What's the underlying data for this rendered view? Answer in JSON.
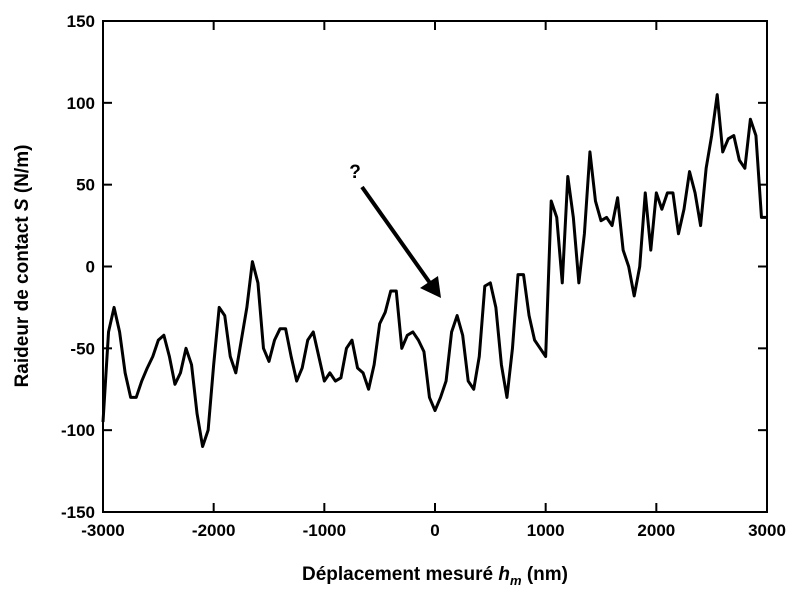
{
  "chart_data": {
    "type": "line",
    "xlabel": {
      "parts": [
        "Déplacement mesuré ",
        "h",
        "m",
        " (nm)"
      ]
    },
    "ylabel": {
      "parts": [
        "Raideur de contact ",
        "S",
        " (N/m)"
      ]
    },
    "annotation": "?",
    "xlim": [
      -3000,
      3000
    ],
    "xticks": [
      -3000,
      -2000,
      -1000,
      0,
      1000,
      2000,
      3000
    ],
    "ylim": [
      -150,
      150
    ],
    "yticks": [
      -150,
      -100,
      -50,
      0,
      50,
      100,
      150
    ],
    "series": [
      {
        "color": "#000000",
        "x": [
          -3000,
          -2950,
          -2900,
          -2850,
          -2800,
          -2750,
          -2700,
          -2650,
          -2600,
          -2550,
          -2500,
          -2450,
          -2400,
          -2350,
          -2300,
          -2250,
          -2200,
          -2150,
          -2100,
          -2050,
          -2000,
          -1950,
          -1900,
          -1850,
          -1800,
          -1750,
          -1700,
          -1650,
          -1600,
          -1550,
          -1500,
          -1450,
          -1400,
          -1350,
          -1300,
          -1250,
          -1200,
          -1150,
          -1100,
          -1050,
          -1000,
          -950,
          -900,
          -850,
          -800,
          -750,
          -700,
          -650,
          -600,
          -550,
          -500,
          -450,
          -400,
          -350,
          -300,
          -250,
          -200,
          -150,
          -100,
          -50,
          0,
          50,
          100,
          150,
          200,
          250,
          300,
          350,
          400,
          450,
          500,
          550,
          600,
          650,
          700,
          750,
          800,
          850,
          900,
          950,
          1000,
          1050,
          1100,
          1150,
          1200,
          1250,
          1300,
          1350,
          1400,
          1450,
          1500,
          1550,
          1600,
          1650,
          1700,
          1750,
          1800,
          1850,
          1900,
          1950,
          2000,
          2050,
          2100,
          2150,
          2200,
          2250,
          2300,
          2350,
          2400,
          2450,
          2500,
          2550,
          2600,
          2650,
          2700,
          2750,
          2800,
          2850,
          2900,
          2950,
          3000
        ],
        "values": [
          -95,
          -40,
          -25,
          -40,
          -65,
          -80,
          -80,
          -70,
          -62,
          -55,
          -45,
          -42,
          -55,
          -72,
          -65,
          -50,
          -60,
          -90,
          -110,
          -100,
          -60,
          -25,
          -30,
          -55,
          -65,
          -45,
          -25,
          3,
          -10,
          -50,
          -58,
          -45,
          -38,
          -38,
          -55,
          -70,
          -62,
          -45,
          -40,
          -55,
          -70,
          -65,
          -70,
          -68,
          -50,
          -45,
          -62,
          -65,
          -75,
          -60,
          -35,
          -28,
          -15,
          -15,
          -50,
          -42,
          -40,
          -45,
          -52,
          -80,
          -88,
          -80,
          -70,
          -40,
          -30,
          -42,
          -70,
          -75,
          -55,
          -12,
          -10,
          -25,
          -60,
          -80,
          -50,
          -5,
          -5,
          -30,
          -45,
          -50,
          -55,
          40,
          30,
          -10,
          55,
          30,
          -10,
          20,
          70,
          40,
          28,
          30,
          25,
          42,
          10,
          0,
          -18,
          0,
          45,
          10,
          45,
          35,
          45,
          45,
          20,
          35,
          58,
          45,
          25,
          60,
          80,
          105,
          70,
          78,
          80,
          65,
          60,
          90,
          80,
          30,
          30
        ]
      }
    ]
  }
}
